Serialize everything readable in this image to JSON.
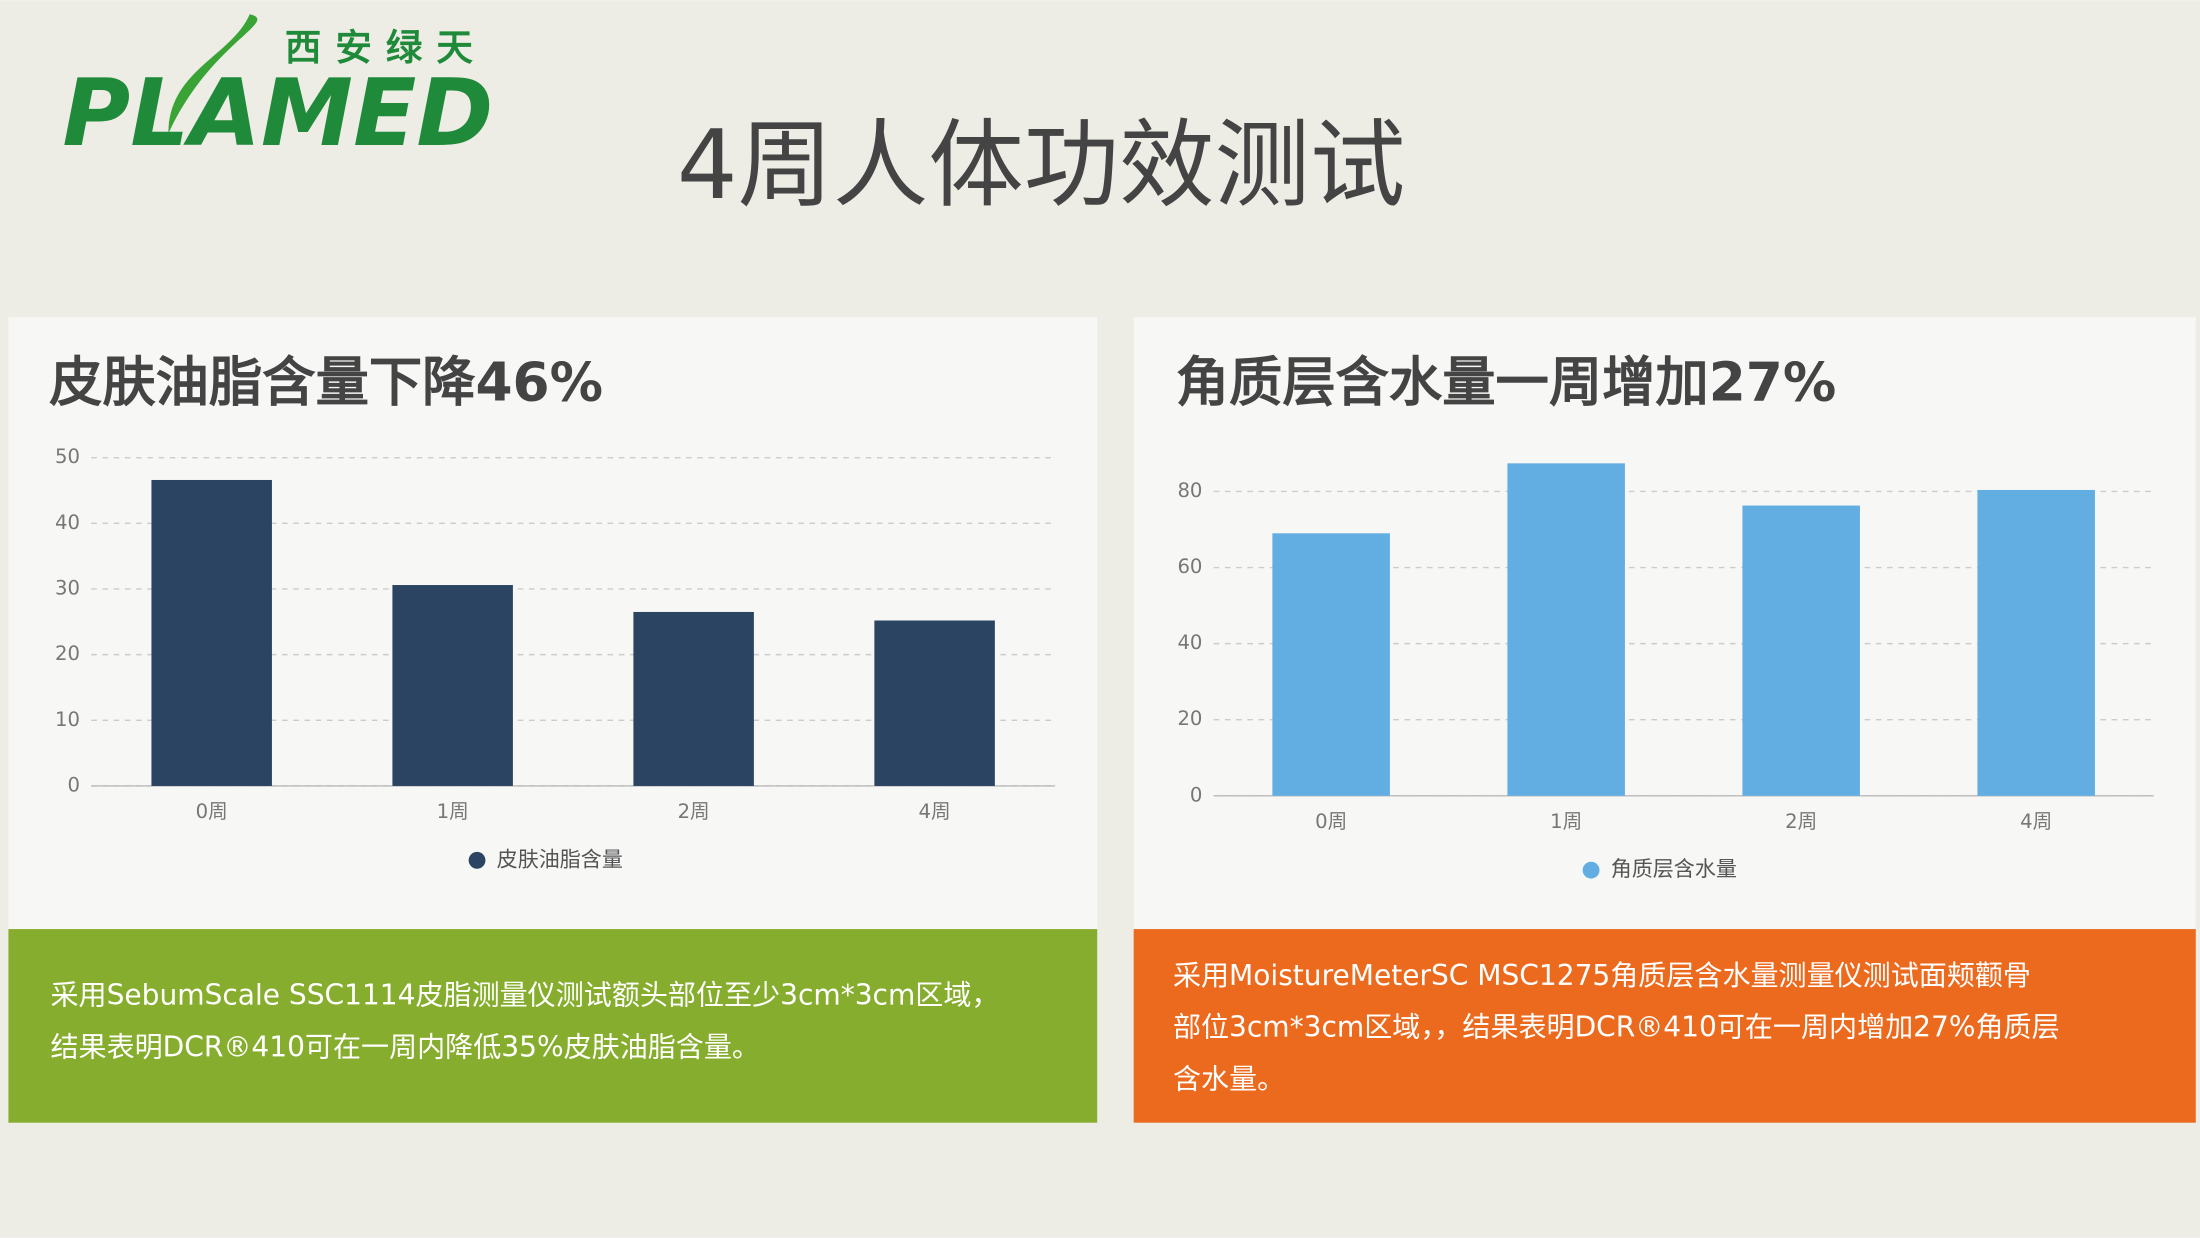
{
  "logo": {
    "cn": "西安绿天",
    "en": "PLAMED"
  },
  "title": "4周人体功效测试",
  "chart_data": [
    {
      "type": "bar",
      "title": "皮肤油脂含量下降46%",
      "categories": [
        "0周",
        "1周",
        "2周",
        "4周"
      ],
      "series": [
        {
          "name": "皮肤油脂含量",
          "color": "#2b4462",
          "values": [
            46.6,
            30.6,
            26.5,
            25.2
          ]
        }
      ],
      "ylim": [
        0,
        50
      ],
      "yticks": [
        0,
        10,
        20,
        30,
        40,
        50
      ],
      "grid": true,
      "legend": "bottom"
    },
    {
      "type": "bar",
      "title": "角质层含水量一周增加27%",
      "categories": [
        "0周",
        "1周",
        "2周",
        "4周"
      ],
      "series": [
        {
          "name": "角质层含水量",
          "color": "#62ade2",
          "values": [
            69,
            87.4,
            76.3,
            80.4
          ]
        }
      ],
      "ylim": [
        0,
        90
      ],
      "yticks": [
        0,
        20,
        40,
        60,
        80
      ],
      "grid": true,
      "legend": "bottom"
    }
  ],
  "captions": [
    [
      "采用SebumScale SSC1114皮脂测量仪测试额头部位至少3cm*3cm区域，",
      "结果表明DCR®410可在一周内降低35%皮肤油脂含量。"
    ],
    [
      "采用MoistureMeterSC MSC1275角质层含水量测量仪测试面颊颧骨",
      "部位3cm*3cm区域，，结果表明DCR®410可在一周内增加27%角质层",
      "含水量。"
    ]
  ]
}
